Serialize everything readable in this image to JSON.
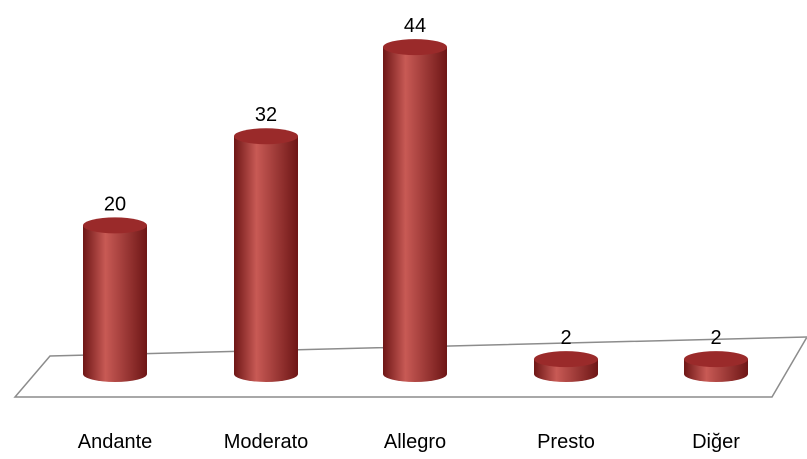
{
  "chart_data": {
    "type": "bar",
    "style": "3d-cylinder",
    "categories": [
      "Andante",
      "Moderato",
      "Allegro",
      "Presto",
      "Diğer"
    ],
    "values": [
      20,
      32,
      44,
      2,
      2
    ],
    "data_labels": [
      "20",
      "32",
      "44",
      "2",
      "2"
    ],
    "title": "",
    "xlabel": "",
    "ylabel": "",
    "ylim": [
      0,
      44
    ],
    "grid": false,
    "legend": "none",
    "colors": {
      "bar": "#a83232",
      "bar_dark": "#6e1616",
      "bar_light": "#c85a55",
      "top": "#9a2a2a",
      "floor_stroke": "#8c8c8c"
    }
  }
}
